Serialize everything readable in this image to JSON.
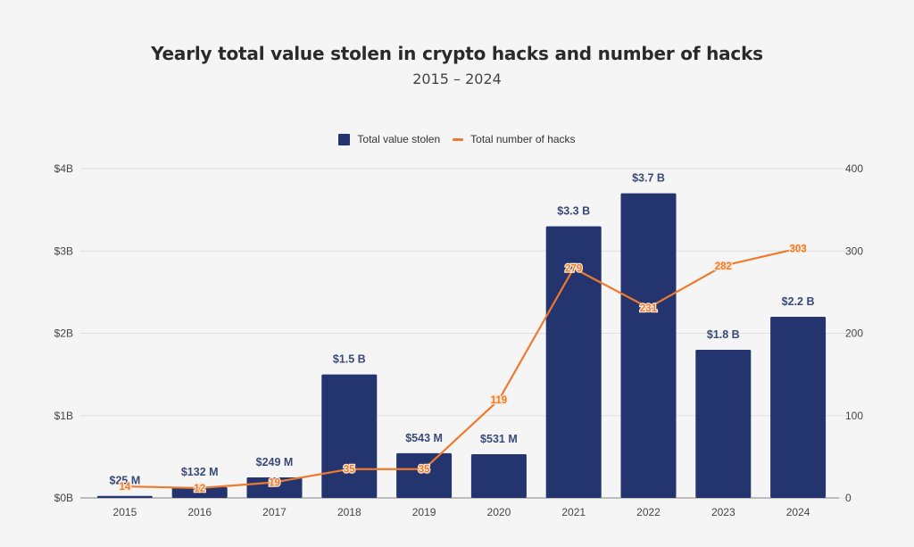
{
  "chart_data": {
    "type": "bar",
    "title": "Yearly total value stolen in crypto hacks and number of hacks",
    "subtitle": "2015 – 2024",
    "categories": [
      "2015",
      "2016",
      "2017",
      "2018",
      "2019",
      "2020",
      "2021",
      "2022",
      "2023",
      "2024"
    ],
    "series": [
      {
        "name": "Total value stolen",
        "type": "bar",
        "axis": "left",
        "unit": "USD billions",
        "color": "#24346e",
        "values": [
          0.025,
          0.132,
          0.249,
          1.5,
          0.543,
          0.531,
          3.3,
          3.7,
          1.8,
          2.2
        ],
        "labels": [
          "$25  M",
          "$132  M",
          "$249  M",
          "$1.5 B",
          "$543  M",
          "$531  M",
          "$3.3 B",
          "$3.7 B",
          "$1.8 B",
          "$2.2 B"
        ]
      },
      {
        "name": "Total number of hacks",
        "type": "line",
        "axis": "right",
        "color": "#ee7a2e",
        "values": [
          14,
          12,
          19,
          35,
          35,
          119,
          279,
          231,
          282,
          303
        ],
        "labels": [
          "14",
          "12",
          "19",
          "35",
          "35",
          "119",
          "279",
          "231",
          "282",
          "303"
        ]
      }
    ],
    "y_left": {
      "label": "",
      "range": [
        0,
        4
      ],
      "ticks": [
        0,
        1,
        2,
        3,
        4
      ],
      "tick_labels": [
        "$0B",
        "$1B",
        "$2B",
        "$3B",
        "$4B"
      ]
    },
    "y_right": {
      "label": "",
      "range": [
        0,
        400
      ],
      "ticks": [
        0,
        100,
        200,
        300,
        400
      ],
      "tick_labels": [
        "0",
        "100",
        "200",
        "300",
        "400"
      ]
    },
    "xlabel": "",
    "grid": true,
    "legend": {
      "position": "top-center",
      "entries": [
        "Total value stolen",
        "Total number of hacks"
      ]
    }
  }
}
